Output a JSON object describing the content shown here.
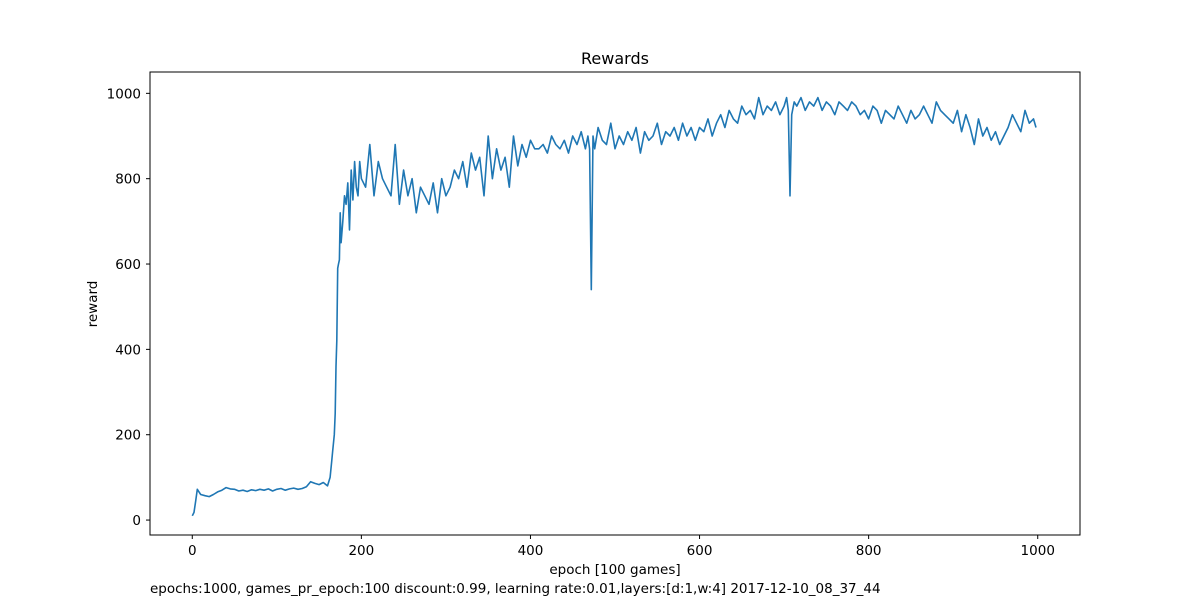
{
  "chart_data": {
    "type": "line",
    "title": "Rewards",
    "xlabel": "epoch [100 games]",
    "ylabel": "reward",
    "xlim": [
      -50,
      1050
    ],
    "ylim": [
      -35,
      1050
    ],
    "xticks": [
      0,
      200,
      400,
      600,
      800,
      1000
    ],
    "yticks": [
      0,
      200,
      400,
      600,
      800,
      1000
    ],
    "grid": false,
    "line_color": "#1f77b4",
    "series": [
      {
        "x": [
          0,
          2,
          4,
          6,
          8,
          10,
          15,
          20,
          25,
          30,
          35,
          40,
          45,
          50,
          55,
          60,
          65,
          70,
          75,
          80,
          85,
          90,
          95,
          100,
          105,
          110,
          115,
          120,
          125,
          130,
          135,
          140,
          145,
          150,
          155,
          160,
          163,
          165,
          166,
          168,
          169,
          170,
          171,
          172,
          173,
          174,
          175,
          176,
          178,
          180,
          182,
          184,
          186,
          188,
          190,
          192,
          194,
          196,
          198,
          200,
          205,
          210,
          215,
          220,
          225,
          230,
          235,
          240,
          245,
          250,
          255,
          260,
          265,
          270,
          275,
          280,
          285,
          290,
          295,
          300,
          305,
          310,
          315,
          320,
          325,
          330,
          335,
          340,
          345,
          350,
          355,
          360,
          365,
          370,
          375,
          380,
          385,
          390,
          395,
          400,
          405,
          410,
          415,
          420,
          425,
          430,
          435,
          440,
          445,
          450,
          455,
          460,
          465,
          468,
          470,
          472,
          474,
          476,
          480,
          485,
          490,
          495,
          500,
          505,
          510,
          515,
          520,
          525,
          530,
          535,
          540,
          545,
          550,
          555,
          560,
          565,
          570,
          575,
          580,
          585,
          590,
          595,
          600,
          605,
          610,
          615,
          620,
          625,
          630,
          635,
          640,
          645,
          650,
          655,
          660,
          665,
          670,
          675,
          680,
          685,
          690,
          695,
          700,
          703,
          705,
          707,
          709,
          712,
          715,
          720,
          725,
          730,
          735,
          740,
          745,
          750,
          755,
          760,
          765,
          770,
          775,
          780,
          785,
          790,
          795,
          800,
          805,
          810,
          815,
          820,
          825,
          830,
          835,
          840,
          845,
          850,
          855,
          860,
          865,
          870,
          875,
          880,
          885,
          890,
          895,
          900,
          905,
          910,
          915,
          920,
          925,
          930,
          935,
          940,
          945,
          950,
          955,
          960,
          965,
          970,
          975,
          980,
          985,
          990,
          995,
          998
        ],
        "values": [
          10,
          18,
          45,
          72,
          66,
          60,
          57,
          55,
          60,
          66,
          70,
          76,
          73,
          72,
          68,
          70,
          67,
          71,
          69,
          72,
          70,
          73,
          68,
          72,
          74,
          70,
          73,
          75,
          72,
          74,
          78,
          90,
          86,
          83,
          88,
          80,
          100,
          140,
          160,
          200,
          250,
          360,
          420,
          590,
          600,
          610,
          720,
          650,
          700,
          760,
          740,
          790,
          680,
          820,
          750,
          840,
          780,
          760,
          840,
          800,
          780,
          880,
          760,
          840,
          800,
          780,
          760,
          880,
          740,
          820,
          760,
          800,
          720,
          780,
          760,
          740,
          790,
          720,
          800,
          760,
          780,
          820,
          800,
          840,
          780,
          860,
          820,
          850,
          760,
          900,
          800,
          870,
          820,
          850,
          780,
          900,
          830,
          880,
          850,
          890,
          870,
          870,
          880,
          860,
          900,
          880,
          870,
          890,
          860,
          900,
          880,
          910,
          870,
          900,
          870,
          540,
          900,
          870,
          920,
          890,
          880,
          930,
          870,
          900,
          880,
          910,
          890,
          920,
          860,
          910,
          890,
          900,
          930,
          880,
          910,
          900,
          920,
          890,
          930,
          900,
          920,
          890,
          920,
          910,
          940,
          900,
          930,
          950,
          920,
          960,
          940,
          930,
          970,
          950,
          960,
          940,
          990,
          950,
          970,
          960,
          980,
          950,
          970,
          990,
          960,
          760,
          950,
          980,
          970,
          990,
          960,
          980,
          970,
          990,
          960,
          980,
          970,
          950,
          980,
          970,
          960,
          980,
          970,
          950,
          960,
          940,
          970,
          960,
          930,
          960,
          950,
          940,
          970,
          950,
          930,
          960,
          940,
          950,
          970,
          950,
          930,
          980,
          960,
          950,
          940,
          930,
          960,
          910,
          950,
          920,
          880,
          940,
          900,
          920,
          890,
          910,
          880,
          900,
          920,
          950,
          930,
          910,
          960,
          930,
          940,
          920
        ]
      }
    ]
  },
  "caption": "epochs:1000, games_pr_epoch:100 discount:0.99, learning rate:0.01,layers:[d:1,w:4] 2017-12-10_08_37_44"
}
